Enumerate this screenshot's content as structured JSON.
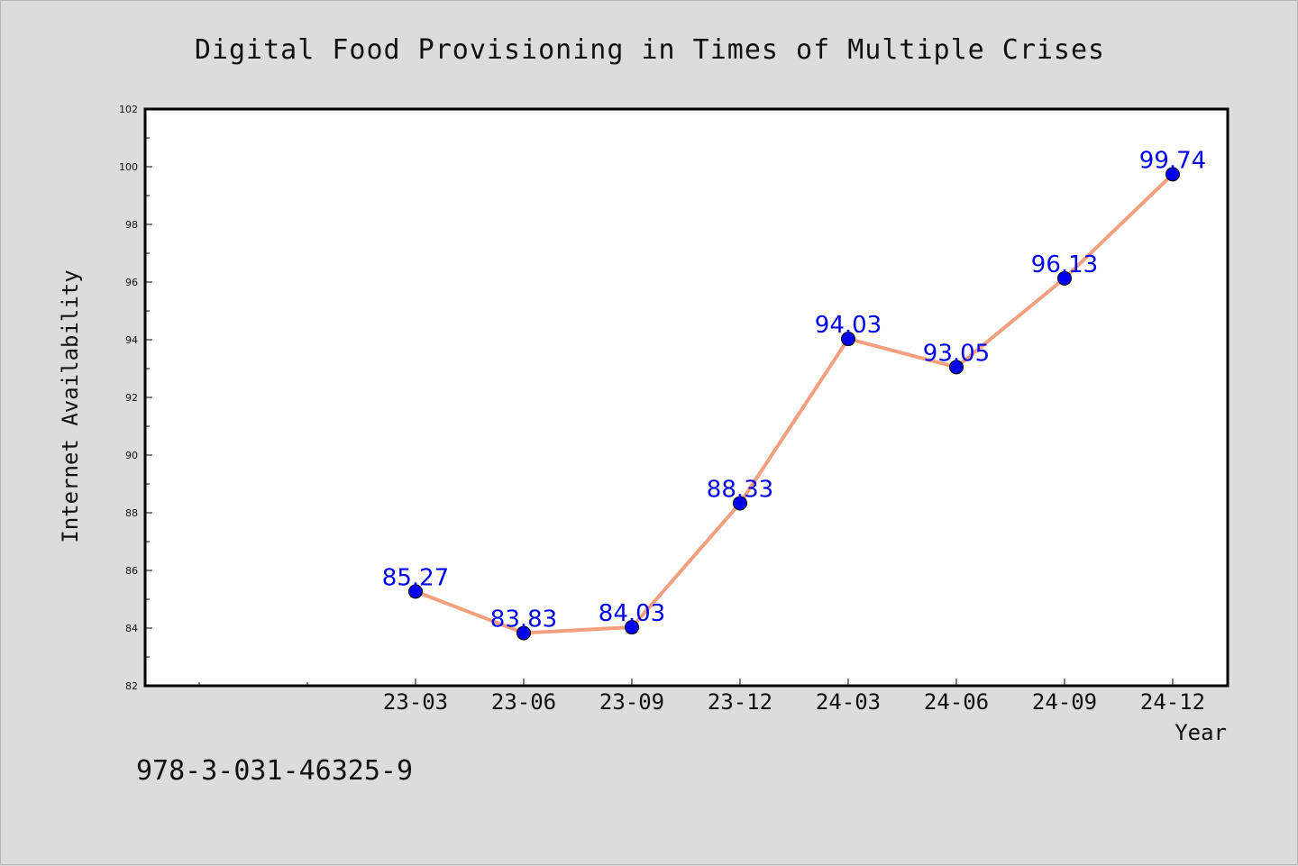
{
  "chart_data": {
    "type": "line",
    "title": "Digital Food Provisioning in Times of Multiple Crises",
    "xlabel": "Year",
    "ylabel": "Internet Availability",
    "categories": [
      "23-03",
      "23-06",
      "23-09",
      "23-12",
      "24-03",
      "24-06",
      "24-09",
      "24-12"
    ],
    "series": [
      {
        "values": [
          85.27,
          83.83,
          84.03,
          88.33,
          94.03,
          93.05,
          96.13,
          99.74
        ],
        "labels": [
          "85.27",
          "83.83",
          "84.03",
          "88.33",
          "94.03",
          "93.05",
          "96.13",
          "99.74"
        ]
      }
    ],
    "ylim": [
      82,
      102
    ],
    "yticks": [
      "82",
      "84",
      "86",
      "88",
      "90",
      "92",
      "94",
      "96",
      "98",
      "100",
      "102"
    ],
    "grid": false,
    "legend": "none",
    "colors": {
      "line": "#f4a07e",
      "marker": "#0000ee",
      "data_label": "#0000ee",
      "background": "#dcdcdc",
      "plot_background": "#ffffff"
    }
  },
  "footer": {
    "isbn": "978-3-031-46325-9"
  }
}
